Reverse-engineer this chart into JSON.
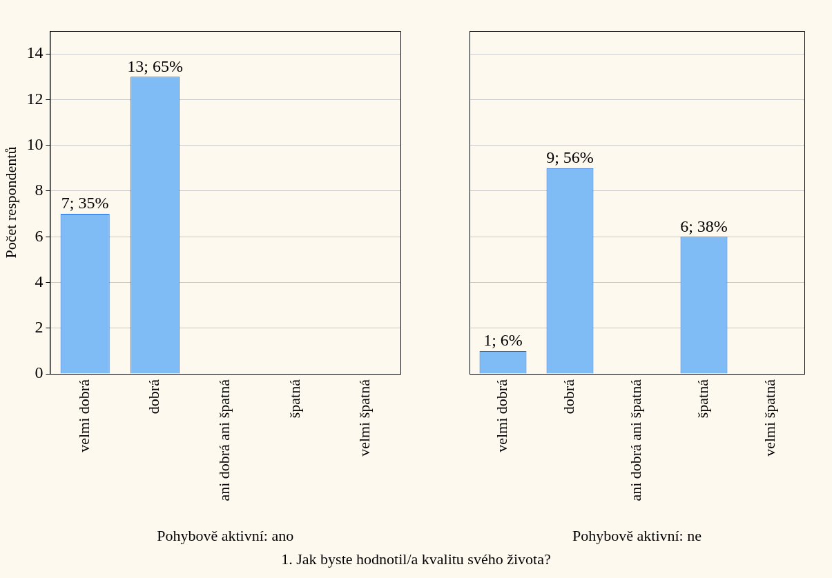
{
  "chart_data": [
    {
      "type": "bar",
      "xlabel": "Pohybově aktivní: ano",
      "ylabel": "Počet respondentů",
      "categories": [
        "velmi dobrá",
        "dobrá",
        "ani dobrá ani špatná",
        "špatná",
        "velmi špatná"
      ],
      "values": [
        7,
        13,
        0,
        0,
        0
      ],
      "value_labels": [
        "7; 35%",
        "13; 65%",
        null,
        null,
        null
      ],
      "color": "#7fbcf6",
      "ylim": [
        0,
        15
      ],
      "yticks": [
        0,
        2,
        4,
        6,
        8,
        10,
        12,
        14
      ],
      "grid": "y",
      "annotations": [
        "1. Jak byste hodnotil/a kvalitu svého života?"
      ]
    },
    {
      "type": "bar",
      "xlabel": "Pohybově aktivní: ne",
      "categories": [
        "velmi dobrá",
        "dobrá",
        "ani dobrá ani špatná",
        "špatná",
        "velmi špatná"
      ],
      "values": [
        1,
        9,
        0,
        6,
        0
      ],
      "value_labels": [
        "1; 6%",
        "9; 56%",
        null,
        "6; 38%",
        null
      ],
      "color": "#7fbcf6",
      "ylim": [
        0,
        15
      ],
      "yticks": [
        0,
        2,
        4,
        6,
        8,
        10,
        12,
        14
      ],
      "grid": "y",
      "tick_labels": "x"
    }
  ]
}
